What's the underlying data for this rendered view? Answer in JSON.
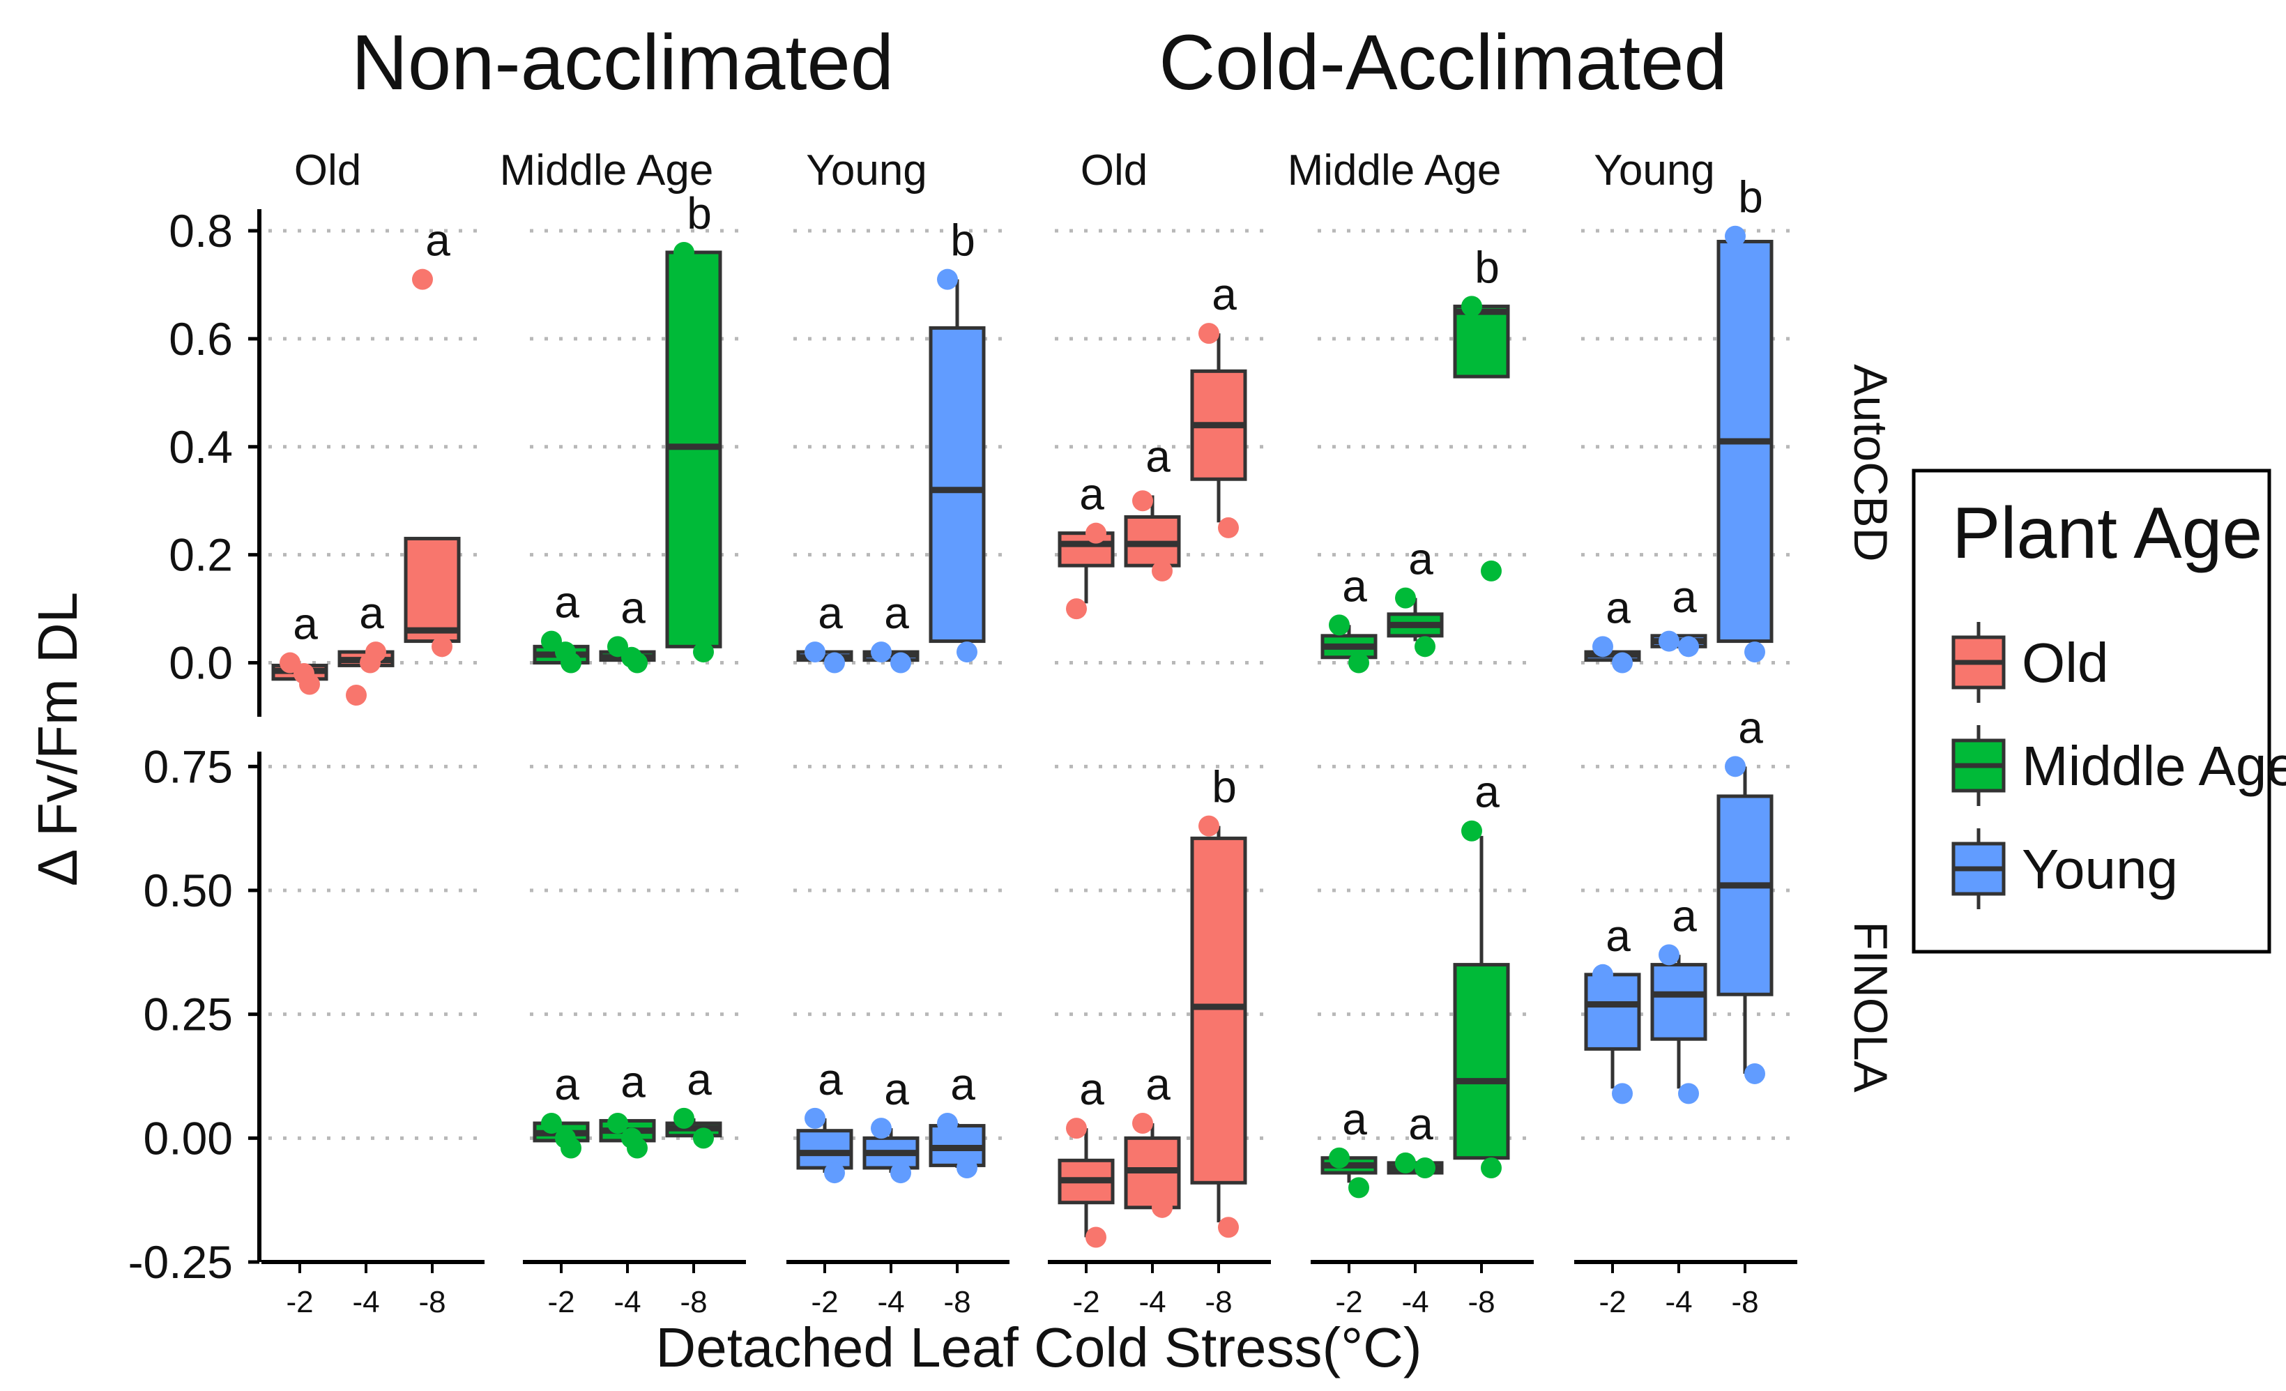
{
  "titles": {
    "non_acclimated": "Non-acclimated",
    "cold_acclimated": "Cold-Acclimated"
  },
  "legend": {
    "title": "Plant Age",
    "items": [
      {
        "label": "Old",
        "color": "#F8766D"
      },
      {
        "label": "Middle Age",
        "color": "#00BA38"
      },
      {
        "label": "Young",
        "color": "#619CFF"
      }
    ]
  },
  "chart_data": {
    "type": "box",
    "title": "",
    "xlabel": "Detached Leaf Cold Stress(°C)",
    "ylabel": "Δ Fv/Fm DL",
    "colors": {
      "Old": "#F8766D",
      "Middle Age": "#00BA38",
      "Young": "#619CFF"
    },
    "column_facets": [
      {
        "group": "Non-acclimated",
        "age": "Old"
      },
      {
        "group": "Non-acclimated",
        "age": "Middle Age"
      },
      {
        "group": "Non-acclimated",
        "age": "Young"
      },
      {
        "group": "Cold-Acclimated",
        "age": "Old"
      },
      {
        "group": "Cold-Acclimated",
        "age": "Middle Age"
      },
      {
        "group": "Cold-Acclimated",
        "age": "Young"
      }
    ],
    "x_categories": [
      "-2",
      "-4",
      "-8"
    ],
    "rows": [
      {
        "facet": "AutoCBD",
        "ylim": [
          -0.1,
          0.84
        ],
        "yticks": [
          0.0,
          0.2,
          0.4,
          0.6,
          0.8
        ],
        "ytick_labels": [
          "0.0",
          "0.2",
          "0.4",
          "0.6",
          "0.8"
        ],
        "boxes": [
          [
            {
              "x": "-2",
              "q1": -0.03,
              "median": -0.015,
              "q3": -0.005,
              "wmin": -0.03,
              "wmax": -0.005,
              "points": [
                0.0,
                -0.04,
                -0.02
              ],
              "letter": "a"
            },
            {
              "x": "-4",
              "q1": -0.005,
              "median": 0.005,
              "q3": 0.02,
              "wmin": -0.005,
              "wmax": 0.02,
              "points": [
                -0.06,
                0.02,
                0.0
              ],
              "letter": "a"
            },
            {
              "x": "-8",
              "q1": 0.04,
              "median": 0.06,
              "q3": 0.23,
              "wmin": 0.04,
              "wmax": 0.23,
              "points": [
                0.71,
                0.03
              ],
              "letter": "a"
            }
          ],
          [
            {
              "x": "-2",
              "q1": 0.0,
              "median": 0.015,
              "q3": 0.03,
              "wmin": 0.0,
              "wmax": 0.03,
              "points": [
                0.04,
                0.0,
                0.02
              ],
              "letter": "a"
            },
            {
              "x": "-4",
              "q1": 0.005,
              "median": 0.01,
              "q3": 0.02,
              "wmin": 0.005,
              "wmax": 0.02,
              "points": [
                0.03,
                0.0,
                0.01
              ],
              "letter": "a"
            },
            {
              "x": "-8",
              "q1": 0.03,
              "median": 0.4,
              "q3": 0.76,
              "wmin": 0.03,
              "wmax": 0.76,
              "points": [
                0.76,
                0.02
              ],
              "letter": "b"
            }
          ],
          [
            {
              "x": "-2",
              "q1": 0.005,
              "median": 0.01,
              "q3": 0.02,
              "wmin": 0.005,
              "wmax": 0.02,
              "points": [
                0.02,
                0.0
              ],
              "letter": "a"
            },
            {
              "x": "-4",
              "q1": 0.005,
              "median": 0.015,
              "q3": 0.02,
              "wmin": 0.005,
              "wmax": 0.02,
              "points": [
                0.02,
                0.0
              ],
              "letter": "a"
            },
            {
              "x": "-8",
              "q1": 0.04,
              "median": 0.32,
              "q3": 0.62,
              "wmin": 0.04,
              "wmax": 0.71,
              "points": [
                0.71,
                0.02
              ],
              "letter": "b"
            }
          ],
          [
            {
              "x": "-2",
              "q1": 0.18,
              "median": 0.22,
              "q3": 0.24,
              "wmin": 0.11,
              "wmax": 0.24,
              "points": [
                0.1,
                0.24
              ],
              "letter": "a"
            },
            {
              "x": "-4",
              "q1": 0.18,
              "median": 0.22,
              "q3": 0.27,
              "wmin": 0.18,
              "wmax": 0.31,
              "points": [
                0.3,
                0.17
              ],
              "letter": "a"
            },
            {
              "x": "-8",
              "q1": 0.34,
              "median": 0.44,
              "q3": 0.54,
              "wmin": 0.26,
              "wmax": 0.61,
              "points": [
                0.61,
                0.25
              ],
              "letter": "a"
            }
          ],
          [
            {
              "x": "-2",
              "q1": 0.01,
              "median": 0.03,
              "q3": 0.05,
              "wmin": 0.01,
              "wmax": 0.07,
              "points": [
                0.07,
                0.0
              ],
              "letter": "a"
            },
            {
              "x": "-4",
              "q1": 0.05,
              "median": 0.07,
              "q3": 0.09,
              "wmin": 0.04,
              "wmax": 0.12,
              "points": [
                0.12,
                0.03
              ],
              "letter": "a"
            },
            {
              "x": "-8",
              "q1": 0.53,
              "median": 0.65,
              "q3": 0.66,
              "wmin": 0.53,
              "wmax": 0.66,
              "points": [
                0.66,
                0.17
              ],
              "letter": "b"
            }
          ],
          [
            {
              "x": "-2",
              "q1": 0.005,
              "median": 0.015,
              "q3": 0.02,
              "wmin": 0.005,
              "wmax": 0.02,
              "points": [
                0.03,
                0.0
              ],
              "letter": "a"
            },
            {
              "x": "-4",
              "q1": 0.03,
              "median": 0.04,
              "q3": 0.05,
              "wmin": 0.03,
              "wmax": 0.05,
              "points": [
                0.04,
                0.03
              ],
              "letter": "a"
            },
            {
              "x": "-8",
              "q1": 0.04,
              "median": 0.41,
              "q3": 0.78,
              "wmin": 0.04,
              "wmax": 0.78,
              "points": [
                0.79,
                0.02
              ],
              "letter": "b"
            }
          ]
        ]
      },
      {
        "facet": "FINOLA",
        "ylim": [
          -0.25,
          0.78
        ],
        "yticks": [
          -0.25,
          0.0,
          0.25,
          0.5,
          0.75
        ],
        "ytick_labels": [
          "-0.25",
          "0.00",
          "0.25",
          "0.50",
          "0.75"
        ],
        "boxes": [
          [],
          [
            {
              "x": "-2",
              "q1": -0.005,
              "median": 0.01,
              "q3": 0.03,
              "wmin": -0.01,
              "wmax": 0.03,
              "points": [
                0.03,
                -0.02,
                0.0
              ],
              "letter": "a"
            },
            {
              "x": "-4",
              "q1": -0.005,
              "median": 0.015,
              "q3": 0.035,
              "wmin": -0.01,
              "wmax": 0.035,
              "points": [
                0.03,
                -0.02,
                0.0
              ],
              "letter": "a"
            },
            {
              "x": "-8",
              "q1": 0.005,
              "median": 0.02,
              "q3": 0.03,
              "wmin": 0.005,
              "wmax": 0.04,
              "points": [
                0.04,
                0.0
              ],
              "letter": "a"
            }
          ],
          [
            {
              "x": "-2",
              "q1": -0.06,
              "median": -0.03,
              "q3": 0.015,
              "wmin": -0.07,
              "wmax": 0.04,
              "points": [
                0.04,
                -0.07
              ],
              "letter": "a"
            },
            {
              "x": "-4",
              "q1": -0.06,
              "median": -0.03,
              "q3": 0.0,
              "wmin": -0.07,
              "wmax": 0.02,
              "points": [
                0.02,
                -0.07
              ],
              "letter": "a"
            },
            {
              "x": "-8",
              "q1": -0.055,
              "median": -0.02,
              "q3": 0.025,
              "wmin": -0.06,
              "wmax": 0.03,
              "points": [
                0.03,
                -0.06
              ],
              "letter": "a"
            }
          ],
          [
            {
              "x": "-2",
              "q1": -0.13,
              "median": -0.085,
              "q3": -0.045,
              "wmin": -0.2,
              "wmax": 0.02,
              "points": [
                0.02,
                -0.2
              ],
              "letter": "a"
            },
            {
              "x": "-4",
              "q1": -0.14,
              "median": -0.065,
              "q3": 0.0,
              "wmin": -0.14,
              "wmax": 0.03,
              "points": [
                0.03,
                -0.14
              ],
              "letter": "a"
            },
            {
              "x": "-8",
              "q1": -0.09,
              "median": 0.265,
              "q3": 0.605,
              "wmin": -0.17,
              "wmax": 0.63,
              "points": [
                0.63,
                -0.18
              ],
              "letter": "b"
            }
          ],
          [
            {
              "x": "-2",
              "q1": -0.07,
              "median": -0.055,
              "q3": -0.04,
              "wmin": -0.09,
              "wmax": -0.04,
              "points": [
                -0.04,
                -0.1
              ],
              "letter": "a"
            },
            {
              "x": "-4",
              "q1": -0.07,
              "median": -0.06,
              "q3": -0.05,
              "wmin": -0.07,
              "wmax": -0.05,
              "points": [
                -0.05,
                -0.06
              ],
              "letter": "a"
            },
            {
              "x": "-8",
              "q1": -0.04,
              "median": 0.115,
              "q3": 0.35,
              "wmin": -0.04,
              "wmax": 0.61,
              "points": [
                0.62,
                -0.06
              ],
              "letter": "a"
            }
          ],
          [
            {
              "x": "-2",
              "q1": 0.18,
              "median": 0.27,
              "q3": 0.33,
              "wmin": 0.1,
              "wmax": 0.33,
              "points": [
                0.33,
                0.09
              ],
              "letter": "a"
            },
            {
              "x": "-4",
              "q1": 0.2,
              "median": 0.29,
              "q3": 0.35,
              "wmin": 0.1,
              "wmax": 0.37,
              "points": [
                0.37,
                0.09
              ],
              "letter": "a"
            },
            {
              "x": "-8",
              "q1": 0.29,
              "median": 0.51,
              "q3": 0.69,
              "wmin": 0.13,
              "wmax": 0.75,
              "points": [
                0.75,
                0.13
              ],
              "letter": "a"
            }
          ]
        ]
      }
    ]
  }
}
